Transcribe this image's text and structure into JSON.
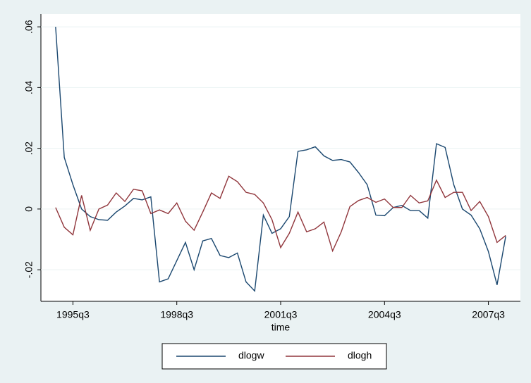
{
  "chart_data": {
    "type": "line",
    "x_label": "time",
    "x": [
      140,
      141,
      142,
      143,
      144,
      145,
      146,
      147,
      148,
      149,
      150,
      151,
      152,
      153,
      154,
      155,
      156,
      157,
      158,
      159,
      160,
      161,
      162,
      163,
      164,
      165,
      166,
      167,
      168,
      169,
      170,
      171,
      172,
      173,
      174,
      175,
      176,
      177,
      178,
      179,
      180,
      181,
      182,
      183,
      184,
      185,
      186,
      187,
      188,
      189,
      190,
      191,
      192
    ],
    "series": [
      {
        "name": "dlogw",
        "color": "#1a476f",
        "values": [
          0.06,
          0.017,
          0.008,
          0.0,
          -0.0025,
          -0.0035,
          -0.0037,
          -0.001,
          0.001,
          0.0035,
          0.003,
          0.004,
          -0.024,
          -0.023,
          -0.017,
          -0.011,
          -0.02,
          -0.0105,
          -0.0097,
          -0.0153,
          -0.016,
          -0.0145,
          -0.024,
          -0.027,
          -0.002,
          -0.008,
          -0.0065,
          -0.0025,
          0.019,
          0.0195,
          0.0205,
          0.0175,
          0.016,
          0.0163,
          0.0155,
          0.012,
          0.008,
          -0.002,
          -0.0022,
          0.0005,
          0.0012,
          -0.0005,
          -0.0005,
          -0.003,
          0.0215,
          0.0203,
          0.008,
          0.0,
          -0.002,
          -0.0065,
          -0.014,
          -0.025,
          -0.009
        ]
      },
      {
        "name": "dlogh",
        "color": "#90353b",
        "values": [
          0.0005,
          -0.006,
          -0.0085,
          0.0045,
          -0.007,
          0.0,
          0.0013,
          0.0053,
          0.0025,
          0.0065,
          0.006,
          -0.0015,
          -0.0003,
          -0.0015,
          0.002,
          -0.004,
          -0.007,
          -0.001,
          0.0053,
          0.0035,
          0.0108,
          0.009,
          0.0055,
          0.0048,
          0.002,
          -0.0035,
          -0.0127,
          -0.008,
          -0.001,
          -0.0075,
          -0.0065,
          -0.0043,
          -0.0138,
          -0.0075,
          0.0008,
          0.0028,
          0.0038,
          0.0022,
          0.0033,
          0.0005,
          0.0005,
          0.0045,
          0.002,
          0.0027,
          0.0095,
          0.0038,
          0.0055,
          0.0055,
          -0.0005,
          0.0025,
          -0.0025,
          -0.011,
          -0.0087
        ]
      }
    ],
    "xlim": [
      138.3,
      193.7
    ],
    "xticks": [
      {
        "value": 142,
        "label": "1995q3"
      },
      {
        "value": 154,
        "label": "1998q3"
      },
      {
        "value": 166,
        "label": "2001q3"
      },
      {
        "value": 178,
        "label": "2004q3"
      },
      {
        "value": 190,
        "label": "2007q3"
      }
    ],
    "ylim": [
      -0.0304,
      0.0642
    ],
    "yticks": [
      {
        "value": -0.02,
        "label": "-.02"
      },
      0,
      {
        "value": 0.02,
        "label": ".02"
      },
      {
        "value": 0.04,
        "label": ".04"
      },
      {
        "value": 0.06,
        "label": ".06"
      }
    ],
    "grid": true,
    "legend": "bottom"
  }
}
